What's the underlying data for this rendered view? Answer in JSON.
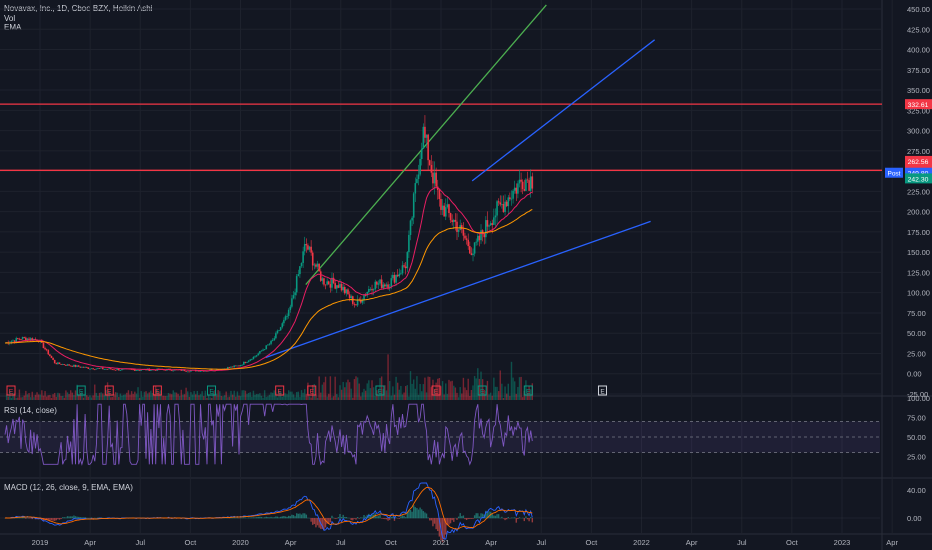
{
  "main_legend": {
    "symbol_line": "Novavax, Inc., 1D, Cboe BZX, Heikin Ashi",
    "vol_label": "Vol",
    "ema_label": "EMA"
  },
  "price_axis": {
    "ticks": [
      "450.00",
      "425.00",
      "400.00",
      "375.00",
      "350.00",
      "325.00",
      "300.00",
      "275.00",
      "250.00",
      "225.00",
      "200.00",
      "175.00",
      "150.00",
      "125.00",
      "100.00",
      "75.00",
      "50.00",
      "25.00",
      "0.00",
      "-25.00"
    ],
    "badges": [
      {
        "text": "332.61",
        "value": 332.61,
        "color": "#f23645"
      },
      {
        "text": "262.56",
        "value": 262.56,
        "color": "#f23645"
      },
      {
        "text": "251.00",
        "value": 251.0,
        "color": "#f23645"
      },
      {
        "text": "249.80",
        "value": 248.0,
        "color": "#2962ff",
        "label": "Post"
      },
      {
        "text": "242.30",
        "value": 241.0,
        "color": "#089981"
      }
    ]
  },
  "rsi_panel": {
    "label": "RSI (14, close)",
    "ticks": [
      "100.00",
      "75.00",
      "50.00",
      "25.00"
    ],
    "line_color": "#7e57c2"
  },
  "macd_panel": {
    "label": "MACD (12, 26, close, 9, EMA, EMA)",
    "ticks": [
      "40.00",
      "0.00"
    ]
  },
  "time_axis": {
    "labels": [
      "2019",
      "Apr",
      "Jul",
      "Oct",
      "2020",
      "Apr",
      "Jul",
      "Oct",
      "2021",
      "Apr",
      "Jul",
      "Oct",
      "2022",
      "Apr",
      "Jul",
      "Oct",
      "2023",
      "Apr"
    ]
  },
  "event_markers": [
    "E",
    "E",
    "E",
    "E",
    "E",
    "E",
    "E",
    "E",
    "E",
    "E",
    "E",
    "E"
  ],
  "colors": {
    "up": "#089981",
    "down": "#f23645",
    "resistance": "#f23645",
    "channel": "#2962ff",
    "upper_trend": "#4caf50",
    "ema_fast": "#e91e63",
    "ema_slow": "#ff9800"
  },
  "chart_data": {
    "type": "candlestick",
    "title": "Novavax, Inc., 1D, Cboe BZX, Heikin Ashi",
    "x": [
      "2019-01",
      "2019-02",
      "2019-03",
      "2019-04",
      "2019-05",
      "2019-06",
      "2019-07",
      "2019-08",
      "2019-09",
      "2019-10",
      "2019-11",
      "2019-12",
      "2020-01",
      "2020-02",
      "2020-03",
      "2020-04",
      "2020-05",
      "2020-06",
      "2020-07",
      "2020-08",
      "2020-09",
      "2020-10",
      "2020-11",
      "2020-12",
      "2021-01",
      "2021-02",
      "2021-03",
      "2021-04",
      "2021-05",
      "2021-06",
      "2021-07",
      "2021-08"
    ],
    "close": [
      38,
      44,
      42,
      13,
      10,
      7,
      6,
      5,
      5,
      5,
      5,
      4,
      4,
      6,
      10,
      22,
      40,
      75,
      160,
      115,
      110,
      85,
      110,
      112,
      135,
      300,
      210,
      185,
      150,
      190,
      215,
      240
    ],
    "ylim": [
      -25,
      450
    ],
    "horizontal_lines": [
      332.61,
      251.0
    ],
    "rsi": {
      "ylim": [
        0,
        100
      ],
      "levels": [
        30,
        50,
        70
      ]
    },
    "macd": {
      "ticks": [
        40,
        0
      ]
    }
  }
}
